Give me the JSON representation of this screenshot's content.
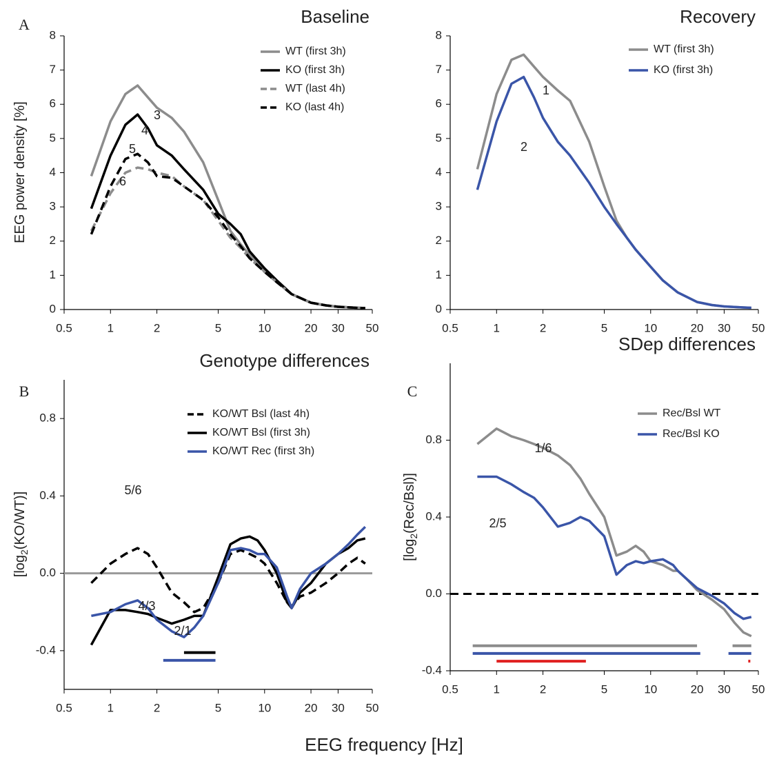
{
  "figure_xlabel": "EEG frequency [Hz]",
  "chart_data": [
    {
      "type": "line",
      "panel": "A",
      "title": "Baseline",
      "ylabel": [
        "EEG power density [%]"
      ],
      "log_x": true,
      "xlim": [
        0.5,
        50
      ],
      "xticks": [
        0.5,
        1,
        2,
        5,
        10,
        20,
        30,
        50
      ],
      "ylim": [
        0,
        8
      ],
      "yticks": [
        0,
        1,
        2,
        3,
        4,
        5,
        6,
        7,
        8
      ],
      "legend": "upper right",
      "x": [
        0.75,
        1,
        1.25,
        1.5,
        1.75,
        2,
        2.5,
        3,
        4,
        5,
        6,
        7,
        8,
        10,
        12,
        15,
        20,
        25,
        30,
        40,
        45
      ],
      "series": [
        {
          "name": "WT (first 3h)",
          "color": "#8c8c8c",
          "dash": false,
          "values": [
            3.9,
            5.5,
            6.3,
            6.55,
            6.2,
            5.9,
            5.6,
            5.2,
            4.3,
            3.2,
            2.3,
            1.9,
            1.6,
            1.1,
            0.8,
            0.45,
            0.2,
            0.12,
            0.08,
            0.05,
            0.04
          ]
        },
        {
          "name": "KO (first 3h)",
          "color": "#000000",
          "dash": false,
          "values": [
            2.95,
            4.5,
            5.4,
            5.7,
            5.3,
            4.8,
            4.5,
            4.1,
            3.5,
            2.8,
            2.5,
            2.2,
            1.7,
            1.2,
            0.85,
            0.45,
            0.2,
            0.12,
            0.08,
            0.05,
            0.04
          ]
        },
        {
          "name": "WT (last 4h)",
          "color": "#8c8c8c",
          "dash": true,
          "values": [
            2.3,
            3.4,
            4.0,
            4.15,
            4.1,
            4.0,
            3.9,
            3.6,
            3.2,
            2.6,
            2.1,
            1.8,
            1.5,
            1.1,
            0.8,
            0.45,
            0.2,
            0.12,
            0.08,
            0.05,
            0.04
          ]
        },
        {
          "name": "KO (last 4h)",
          "color": "#000000",
          "dash": true,
          "values": [
            2.2,
            3.6,
            4.4,
            4.55,
            4.3,
            3.9,
            3.85,
            3.6,
            3.2,
            2.7,
            2.2,
            1.85,
            1.5,
            1.1,
            0.8,
            0.45,
            0.2,
            0.12,
            0.08,
            0.05,
            0.04
          ]
        }
      ],
      "annotations": [
        "3",
        "4",
        "5",
        "6"
      ]
    },
    {
      "type": "line",
      "title": "Recovery",
      "log_x": true,
      "xlim": [
        0.5,
        50
      ],
      "xticks": [
        0.5,
        1,
        2,
        5,
        10,
        20,
        30,
        50
      ],
      "ylim": [
        0,
        8
      ],
      "yticks": [
        0,
        1,
        2,
        3,
        4,
        5,
        6,
        7,
        8
      ],
      "legend": "upper right",
      "x": [
        0.75,
        1,
        1.25,
        1.5,
        1.75,
        2,
        2.5,
        3,
        4,
        5,
        6,
        7,
        8,
        10,
        12,
        15,
        20,
        25,
        30,
        40,
        45
      ],
      "series": [
        {
          "name": "WT (first 3h)",
          "color": "#8c8c8c",
          "dash": false,
          "values": [
            4.1,
            6.3,
            7.3,
            7.45,
            7.1,
            6.8,
            6.4,
            6.1,
            4.9,
            3.6,
            2.6,
            2.1,
            1.75,
            1.25,
            0.85,
            0.5,
            0.22,
            0.13,
            0.09,
            0.06,
            0.05
          ]
        },
        {
          "name": "KO  (first 3h)",
          "color": "#3a55a8",
          "dash": false,
          "values": [
            3.5,
            5.5,
            6.6,
            6.8,
            6.2,
            5.6,
            4.9,
            4.5,
            3.7,
            3.0,
            2.5,
            2.1,
            1.75,
            1.25,
            0.85,
            0.5,
            0.22,
            0.13,
            0.09,
            0.06,
            0.05
          ]
        }
      ],
      "annotations": [
        "1",
        "2"
      ]
    },
    {
      "type": "line",
      "panel": "B",
      "title": "Genotype differences",
      "ylabel": [
        "[log",
        "2",
        "(KO/WT)]"
      ],
      "log_x": true,
      "xlim": [
        0.5,
        50
      ],
      "xticks": [
        0.5,
        1,
        2,
        5,
        10,
        20,
        30,
        50
      ],
      "ylim": [
        -0.6,
        1.0
      ],
      "yticks": [
        -0.4,
        {
          "value": 0,
          "label": "0.0"
        },
        0.4,
        0.8
      ],
      "legend": "upper right",
      "ref_line": {
        "y": 0,
        "color": "#999999",
        "dash": false
      },
      "x": [
        0.75,
        1,
        1.25,
        1.5,
        1.75,
        2,
        2.5,
        3,
        3.5,
        4,
        5,
        6,
        7,
        8,
        9,
        10,
        12,
        14,
        15,
        17,
        20,
        25,
        30,
        35,
        40,
        45
      ],
      "series": [
        {
          "name": "KO/WT Bsl  (last 4h)",
          "color": "#000000",
          "dash": true,
          "values": [
            -0.05,
            0.05,
            0.1,
            0.13,
            0.1,
            0.03,
            -0.1,
            -0.15,
            -0.2,
            -0.18,
            -0.05,
            0.1,
            0.12,
            0.1,
            0.08,
            0.05,
            -0.05,
            -0.15,
            -0.17,
            -0.12,
            -0.1,
            -0.05,
            0.0,
            0.05,
            0.08,
            0.05
          ]
        },
        {
          "name": "KO/WT Bsl  (first 3h)",
          "color": "#000000",
          "dash": false,
          "values": [
            -0.37,
            -0.19,
            -0.19,
            -0.2,
            -0.21,
            -0.23,
            -0.26,
            -0.24,
            -0.22,
            -0.22,
            -0.02,
            0.15,
            0.18,
            0.19,
            0.17,
            0.12,
            0.0,
            -0.15,
            -0.18,
            -0.1,
            -0.05,
            0.05,
            0.1,
            0.13,
            0.17,
            0.18
          ]
        },
        {
          "name": "KO/WT Rec  (first 3h)",
          "color": "#3a55a8",
          "dash": false,
          "values": [
            -0.22,
            -0.2,
            -0.16,
            -0.14,
            -0.18,
            -0.24,
            -0.3,
            -0.33,
            -0.28,
            -0.22,
            -0.05,
            0.12,
            0.13,
            0.12,
            0.1,
            0.1,
            0.03,
            -0.12,
            -0.18,
            -0.08,
            0.0,
            0.05,
            0.1,
            0.15,
            0.2,
            0.24
          ]
        }
      ],
      "sig_bars": [
        {
          "color": "#000000",
          "y": -0.41,
          "segments": [
            [
              3,
              4.8
            ]
          ]
        },
        {
          "color": "#3a55a8",
          "y": -0.45,
          "segments": [
            [
              2.2,
              4.8
            ]
          ]
        }
      ],
      "annotations": [
        "5/6",
        "4/3",
        "2/1"
      ]
    },
    {
      "type": "line",
      "panel": "C",
      "title": "SDep differences",
      "ylabel": [
        "[log",
        "2",
        "(Rec/Bsl)]"
      ],
      "log_x": true,
      "xlim": [
        0.5,
        50
      ],
      "xticks": [
        0.5,
        1,
        2,
        5,
        10,
        20,
        30,
        50
      ],
      "ylim": [
        -0.4,
        1.2
      ],
      "yticks": [
        -0.4,
        {
          "value": 0,
          "label": "0.0"
        },
        0.4,
        0.8
      ],
      "legend": "upper right",
      "ref_line": {
        "y": 0,
        "color": "#000000",
        "dash": true
      },
      "x": [
        0.75,
        1,
        1.25,
        1.5,
        1.75,
        2,
        2.5,
        3,
        3.5,
        4,
        5,
        6,
        7,
        8,
        9,
        10,
        12,
        14,
        15,
        17,
        20,
        25,
        30,
        35,
        40,
        45
      ],
      "series": [
        {
          "name": "Rec/Bsl WT",
          "color": "#8c8c8c",
          "dash": false,
          "values": [
            0.78,
            0.86,
            0.82,
            0.8,
            0.78,
            0.76,
            0.72,
            0.67,
            0.6,
            0.52,
            0.4,
            0.2,
            0.22,
            0.25,
            0.22,
            0.17,
            0.15,
            0.12,
            0.12,
            0.08,
            0.02,
            -0.03,
            -0.08,
            -0.15,
            -0.2,
            -0.22
          ]
        },
        {
          "name": "Rec/Bsl KO",
          "color": "#3a55a8",
          "dash": false,
          "values": [
            0.61,
            0.61,
            0.57,
            0.53,
            0.5,
            0.45,
            0.35,
            0.37,
            0.4,
            0.38,
            0.3,
            0.1,
            0.15,
            0.17,
            0.16,
            0.17,
            0.18,
            0.15,
            0.12,
            0.08,
            0.03,
            -0.01,
            -0.05,
            -0.1,
            -0.13,
            -0.12
          ]
        }
      ],
      "sig_bars": [
        {
          "color": "#8c8c8c",
          "y": -0.27,
          "segments": [
            [
              0.7,
              20
            ],
            [
              34,
              45
            ]
          ]
        },
        {
          "color": "#3a55a8",
          "y": -0.31,
          "segments": [
            [
              0.7,
              21
            ],
            [
              32,
              45
            ]
          ]
        },
        {
          "color": "#e02020",
          "y": -0.35,
          "segments": [
            [
              1,
              3.8
            ],
            [
              43,
              43.6
            ]
          ]
        }
      ],
      "annotations": [
        "1/6",
        "2/5"
      ]
    }
  ]
}
